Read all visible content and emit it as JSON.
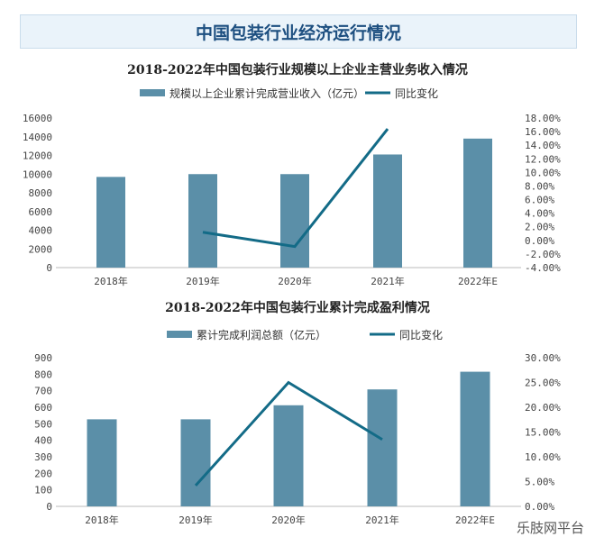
{
  "banner_title": "中国包装行业经济运行情况",
  "watermark": "乐肢网平台",
  "chart_data": [
    {
      "type": "bar",
      "title": "2018-2022年中国包装行业规模以上企业主营业务收入情况",
      "categories": [
        "2018年",
        "2019年",
        "2020年",
        "2021年",
        "2022年E"
      ],
      "series": [
        {
          "name": "规模以上企业累计完成营业收入（亿元）",
          "type": "bar",
          "axis": "left",
          "values": [
            9700,
            10000,
            10000,
            12100,
            13800
          ]
        },
        {
          "name": "同比变化",
          "type": "line",
          "axis": "right",
          "values": [
            null,
            1.2,
            -0.9,
            16.4,
            null
          ]
        }
      ],
      "ylim": [
        0,
        16000
      ],
      "yticks": [
        "0",
        "2000",
        "4000",
        "6000",
        "8000",
        "10000",
        "12000",
        "14000",
        "16000"
      ],
      "y2lim": [
        -4,
        18
      ],
      "y2ticks": [
        "-4.00%",
        "-2.00%",
        "0.00%",
        "2.00%",
        "4.00%",
        "6.00%",
        "8.00%",
        "10.00%",
        "12.00%",
        "14.00%",
        "16.00%",
        "18.00%"
      ],
      "legend": "top"
    },
    {
      "type": "bar",
      "title": "2018-2022年中国包装行业累计完成盈利情况",
      "categories": [
        "2018年",
        "2019年",
        "2020年",
        "2021年",
        "2022年E"
      ],
      "series": [
        {
          "name": "累计完成利润总额（亿元）",
          "type": "bar",
          "axis": "left",
          "values": [
            527,
            527,
            612,
            708,
            815
          ]
        },
        {
          "name": "同比变化",
          "type": "line",
          "axis": "right",
          "values": [
            null,
            4.2,
            25.0,
            13.5,
            null
          ]
        }
      ],
      "ylim": [
        0,
        900
      ],
      "yticks": [
        "0",
        "100",
        "200",
        "300",
        "400",
        "500",
        "600",
        "700",
        "800",
        "900"
      ],
      "y2lim": [
        0,
        30
      ],
      "y2ticks": [
        "0.00%",
        "5.00%",
        "10.00%",
        "15.00%",
        "20.00%",
        "25.00%",
        "30.00%"
      ],
      "legend": "top"
    }
  ]
}
